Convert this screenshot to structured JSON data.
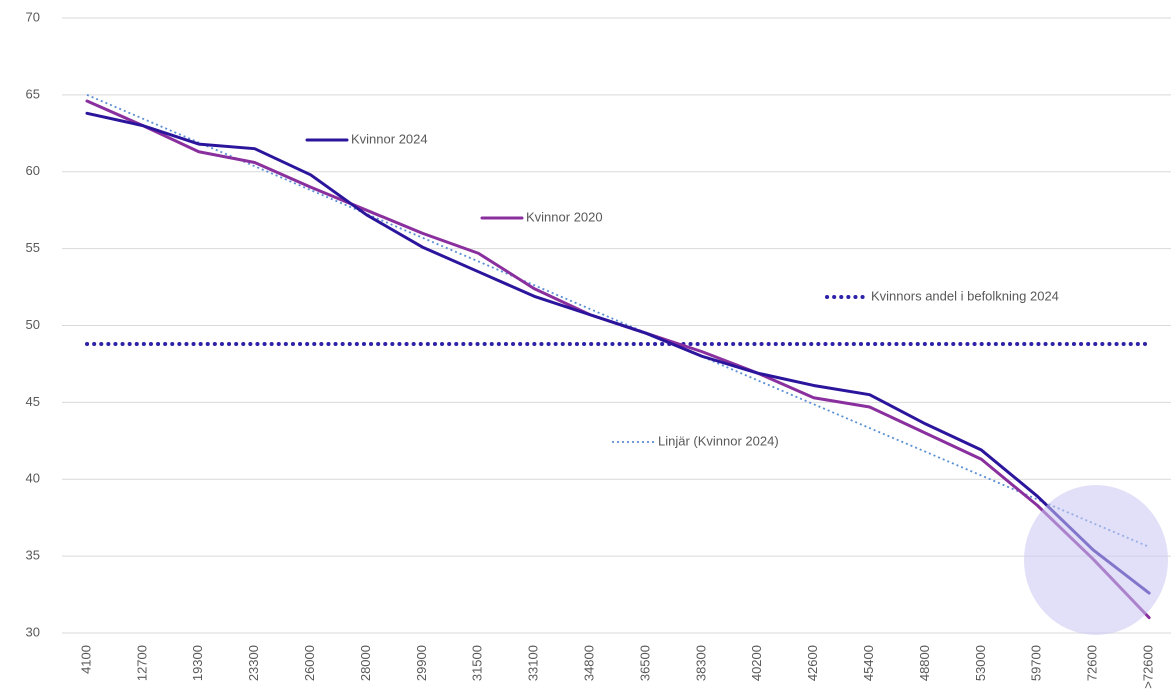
{
  "chart_data": {
    "type": "line",
    "categories": [
      "4100",
      "12700",
      "19300",
      "23300",
      "26000",
      "28000",
      "29900",
      "31500",
      "33100",
      "34800",
      "36500",
      "38300",
      "40200",
      "42600",
      "45400",
      "48800",
      "53000",
      "59700",
      "72600",
      ">72600"
    ],
    "series": [
      {
        "name": "Kvinnor 2024",
        "color": "#2b159c",
        "line_style": "solid",
        "values": [
          63.8,
          63.0,
          61.8,
          61.5,
          59.8,
          57.2,
          55.1,
          53.5,
          51.9,
          50.7,
          49.5,
          48.0,
          46.9,
          46.1,
          45.5,
          43.6,
          41.9,
          38.9,
          35.4,
          32.6
        ]
      },
      {
        "name": "Kvinnor 2020",
        "color": "#8a2f9e",
        "line_style": "solid",
        "values": [
          64.6,
          63.0,
          61.3,
          60.6,
          59.0,
          57.5,
          56.0,
          54.7,
          52.4,
          50.7,
          49.5,
          48.3,
          46.9,
          45.3,
          44.7,
          43.0,
          41.3,
          38.3,
          34.8,
          31.0
        ]
      },
      {
        "name": "Kvinnors andel i befolkning 2024",
        "color": "#2e22a8",
        "line_style": "dotted",
        "values": [
          48.8,
          48.8,
          48.8,
          48.8,
          48.8,
          48.8,
          48.8,
          48.8,
          48.8,
          48.8,
          48.8,
          48.8,
          48.8,
          48.8,
          48.8,
          48.8,
          48.8,
          48.8,
          48.8,
          48.8
        ]
      },
      {
        "name": "Linjär (Kvinnor 2024)",
        "color": "#5b8fd4",
        "line_style": "fine-dotted",
        "values": [
          65.0,
          63.45,
          61.9,
          60.36,
          58.81,
          57.26,
          55.71,
          54.17,
          52.62,
          51.07,
          49.52,
          47.98,
          46.43,
          44.88,
          43.33,
          41.79,
          40.24,
          38.69,
          37.14,
          35.6
        ]
      }
    ],
    "ylim": [
      30,
      70
    ],
    "yticks": [
      30,
      35,
      40,
      45,
      50,
      55,
      60,
      65,
      70
    ],
    "grid": true
  }
}
